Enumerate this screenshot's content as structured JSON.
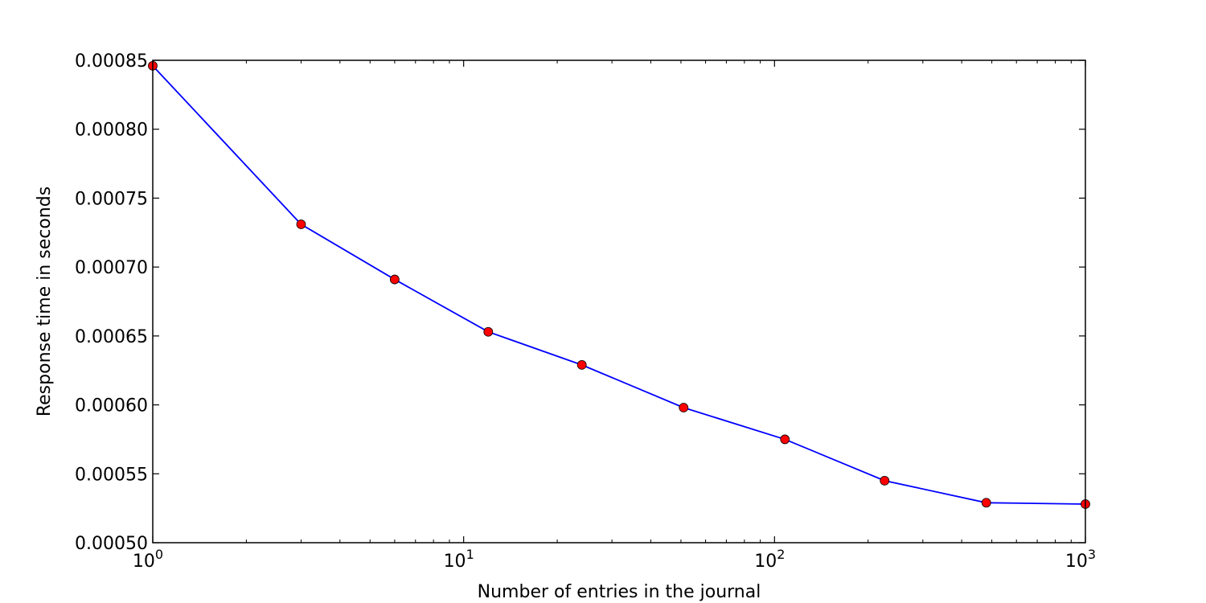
{
  "chart_data": {
    "type": "line",
    "xlabel": "Number of entries in the journal",
    "ylabel": "Response time in seconds",
    "x_scale": "log",
    "xlim": [
      1,
      1000
    ],
    "ylim": [
      0.0005,
      0.00085
    ],
    "x_ticks": [
      {
        "value": 1,
        "base": "10",
        "exp": "0"
      },
      {
        "value": 10,
        "base": "10",
        "exp": "1"
      },
      {
        "value": 100,
        "base": "10",
        "exp": "2"
      },
      {
        "value": 1000,
        "base": "10",
        "exp": "3"
      }
    ],
    "y_ticks": [
      {
        "value": 0.0005,
        "label": "0.00050"
      },
      {
        "value": 0.00055,
        "label": "0.00055"
      },
      {
        "value": 0.0006,
        "label": "0.00060"
      },
      {
        "value": 0.00065,
        "label": "0.00065"
      },
      {
        "value": 0.0007,
        "label": "0.00070"
      },
      {
        "value": 0.00075,
        "label": "0.00075"
      },
      {
        "value": 0.0008,
        "label": "0.00080"
      },
      {
        "value": 0.00085,
        "label": "0.00085"
      }
    ],
    "grid": false,
    "series": [
      {
        "x": [
          1,
          3,
          6,
          12,
          24,
          51,
          108,
          226,
          480,
          1000
        ],
        "y": [
          0.000846,
          0.000731,
          0.000691,
          0.000653,
          0.000629,
          0.000598,
          0.000575,
          0.000545,
          0.000529,
          0.000528
        ],
        "line_color": "#0000ff",
        "marker_color": "#ff0000"
      }
    ]
  }
}
